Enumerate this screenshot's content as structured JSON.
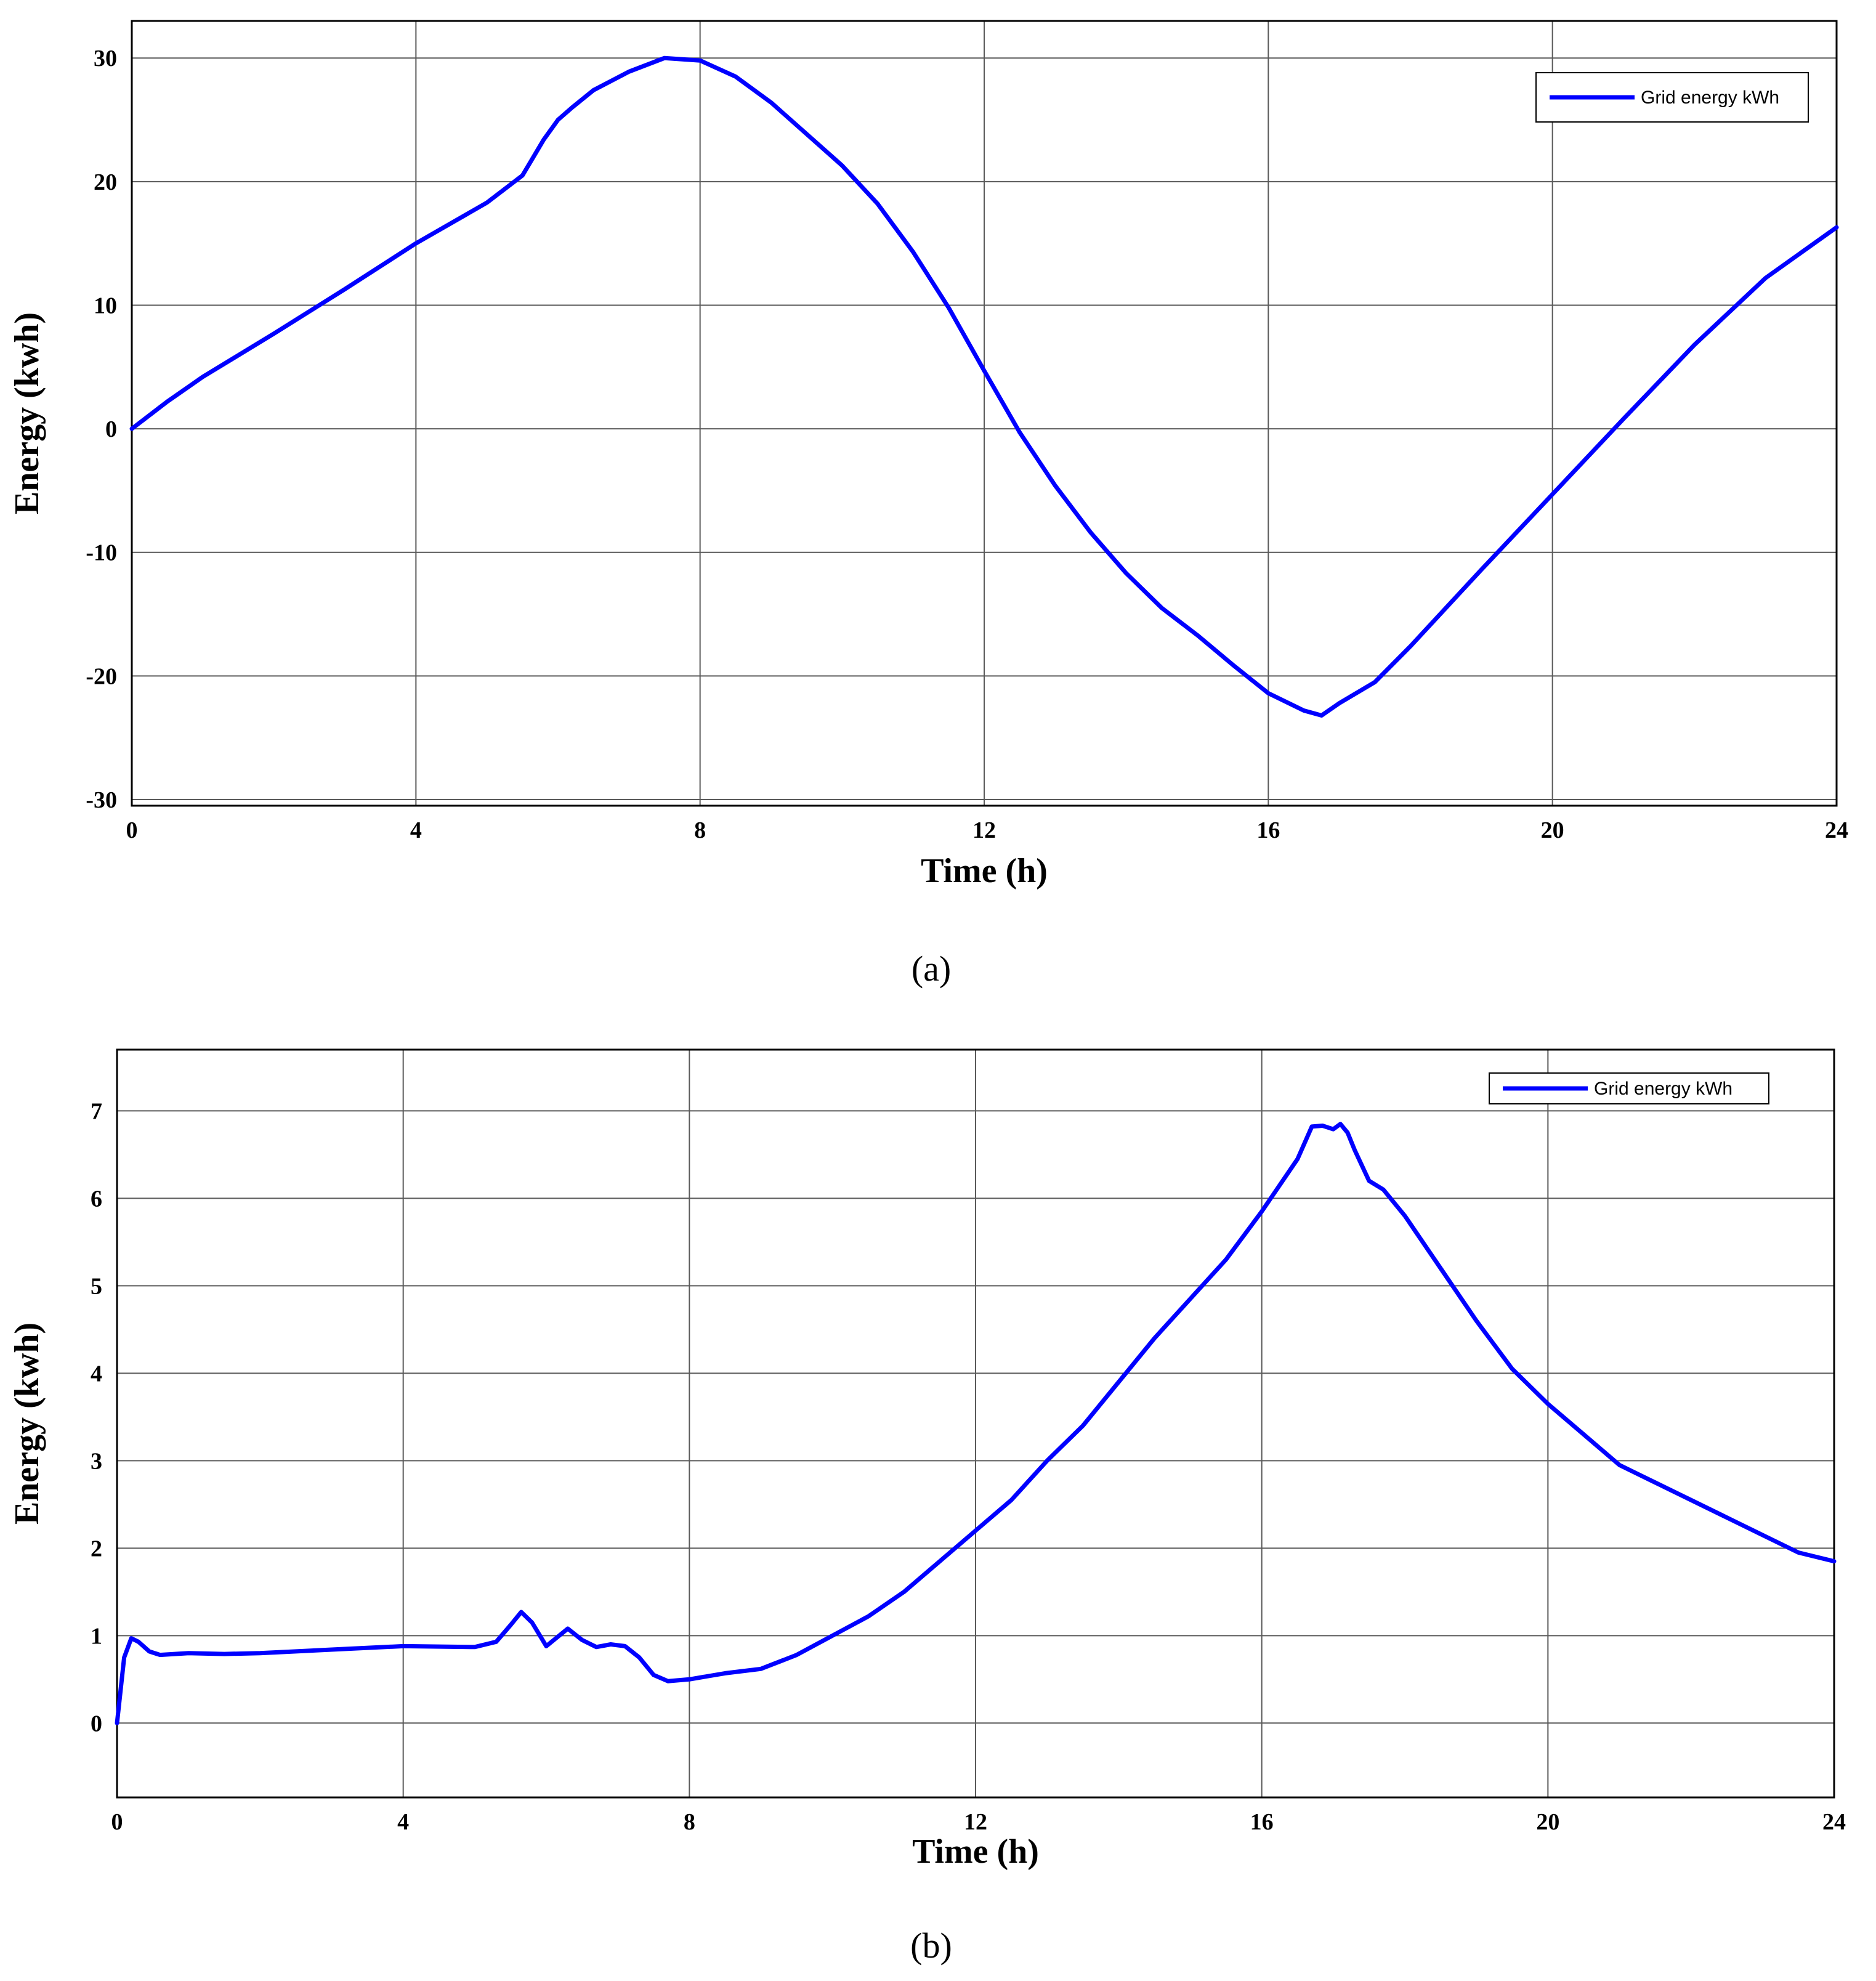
{
  "chart_data": [
    {
      "type": "line",
      "caption": "(a)",
      "xlabel": "Time (h)",
      "ylabel": "Energy (kwh)",
      "xlim": [
        0,
        24
      ],
      "ylim": [
        -30.5,
        33
      ],
      "xticks": [
        0,
        4,
        8,
        12,
        16,
        20,
        24
      ],
      "yticks": [
        -30,
        -20,
        -10,
        0,
        10,
        20,
        30
      ],
      "grid": true,
      "legend_position": "top-right",
      "series": [
        {
          "name": "Grid energy kWh",
          "color": "#0000ff",
          "x": [
            0,
            0.5,
            1,
            2,
            3,
            4,
            5,
            5.5,
            5.8,
            6,
            6.2,
            6.5,
            7,
            7.5,
            8,
            8.5,
            9,
            10,
            10.5,
            11,
            11.5,
            12,
            12.5,
            13,
            13.5,
            14,
            14.5,
            15,
            15.5,
            16,
            16.5,
            16.75,
            17,
            17.5,
            18,
            19,
            20,
            21,
            22,
            23,
            24
          ],
          "y": [
            0,
            2.2,
            4.2,
            7.7,
            11.3,
            15,
            18.3,
            20.5,
            23.4,
            25,
            26,
            27.4,
            28.9,
            30,
            29.8,
            28.5,
            26.4,
            21.3,
            18.2,
            14.3,
            9.8,
            4.7,
            -0.3,
            -4.6,
            -8.4,
            -11.7,
            -14.5,
            -16.7,
            -19.1,
            -21.4,
            -22.8,
            -23.2,
            -22.2,
            -20.5,
            -17.6,
            -11.4,
            -5.3,
            0.8,
            6.8,
            12.2,
            16.3
          ]
        }
      ]
    },
    {
      "type": "line",
      "caption": "(b)",
      "xlabel": "Time (h)",
      "ylabel": "Energy (kwh)",
      "xlim": [
        0,
        24
      ],
      "ylim": [
        -0.85,
        7.7
      ],
      "xticks": [
        0,
        4,
        8,
        12,
        16,
        20,
        24
      ],
      "yticks": [
        0,
        1,
        2,
        3,
        4,
        5,
        6,
        7
      ],
      "grid": true,
      "legend_position": "top-right",
      "series": [
        {
          "name": "Grid energy kWh",
          "color": "#0000ff",
          "x": [
            0,
            0.1,
            0.2,
            0.3,
            0.45,
            0.6,
            1,
            1.5,
            2,
            3,
            4,
            5,
            5.3,
            5.5,
            5.65,
            5.8,
            6,
            6.15,
            6.3,
            6.5,
            6.7,
            6.9,
            7.1,
            7.3,
            7.5,
            7.7,
            8,
            8.5,
            9,
            9.5,
            10,
            10.5,
            11,
            11.5,
            12,
            12.5,
            13,
            13.5,
            14,
            14.5,
            15,
            15.5,
            16,
            16.5,
            16.7,
            16.85,
            17,
            17.1,
            17.2,
            17.3,
            17.5,
            17.7,
            18,
            18.5,
            19,
            19.5,
            20,
            20.5,
            21,
            21.5,
            22,
            22.5,
            23,
            23.5,
            24
          ],
          "y": [
            0,
            0.75,
            0.97,
            0.93,
            0.82,
            0.78,
            0.8,
            0.79,
            0.8,
            0.84,
            0.88,
            0.87,
            0.93,
            1.12,
            1.27,
            1.15,
            0.88,
            0.98,
            1.08,
            0.95,
            0.87,
            0.9,
            0.88,
            0.75,
            0.55,
            0.48,
            0.5,
            0.57,
            0.62,
            0.78,
            1.0,
            1.22,
            1.5,
            1.85,
            2.2,
            2.55,
            3.0,
            3.4,
            3.9,
            4.4,
            4.85,
            5.3,
            5.85,
            6.45,
            6.82,
            6.83,
            6.79,
            6.85,
            6.75,
            6.55,
            6.2,
            6.1,
            5.8,
            5.2,
            4.6,
            4.05,
            3.65,
            3.3,
            2.95,
            2.75,
            2.55,
            2.35,
            2.15,
            1.95,
            1.85
          ]
        }
      ]
    }
  ]
}
